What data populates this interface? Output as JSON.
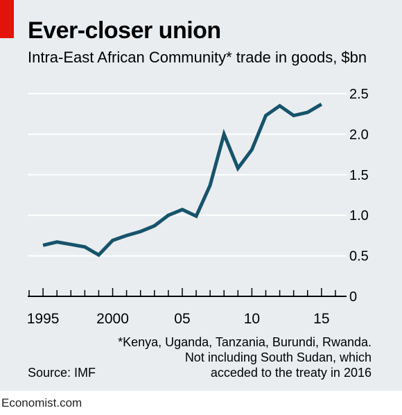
{
  "accent_color": "#e3120b",
  "background_color": "#e9edf0",
  "line_color": "#17536b",
  "chart_data": {
    "type": "line",
    "title": "Ever-closer union",
    "subtitle": "Intra-East African Community* trade in goods, $bn",
    "xlabel": "",
    "ylabel": "",
    "x": [
      1995,
      1996,
      1997,
      1998,
      1999,
      2000,
      2001,
      2002,
      2003,
      2004,
      2005,
      2006,
      2007,
      2008,
      2009,
      2010,
      2011,
      2012,
      2013,
      2014,
      2015
    ],
    "series": [
      {
        "name": "",
        "values": [
          0.63,
          0.67,
          0.64,
          0.61,
          0.51,
          0.69,
          0.75,
          0.8,
          0.87,
          1.0,
          1.07,
          0.99,
          1.37,
          2.0,
          1.58,
          1.81,
          2.23,
          2.35,
          2.23,
          2.27,
          2.37
        ]
      }
    ],
    "xlim": [
      1993.9,
      2016.8
    ],
    "ylim": [
      0,
      2.5
    ],
    "yticks": [
      {
        "value": 0,
        "label": "0"
      },
      {
        "value": 0.5,
        "label": "0.5"
      },
      {
        "value": 1.0,
        "label": "1.0"
      },
      {
        "value": 1.5,
        "label": "1.5"
      },
      {
        "value": 2.0,
        "label": "2.0"
      },
      {
        "value": 2.5,
        "label": "2.5"
      }
    ],
    "xticks": [
      {
        "value": 1995,
        "label": "1995"
      },
      {
        "value": 2000,
        "label": "2000"
      },
      {
        "value": 2005,
        "label": "05"
      },
      {
        "value": 2010,
        "label": "10"
      },
      {
        "value": 2015,
        "label": "15"
      }
    ],
    "grid": true,
    "y_axis_side": "right"
  },
  "footnote_lines": [
    "*Kenya, Uganda, Tanzania, Burundi, Rwanda.",
    "Not including South Sudan, which",
    "acceded to the treaty in 2016"
  ],
  "source": "Source: IMF",
  "brand": "Economist.com"
}
